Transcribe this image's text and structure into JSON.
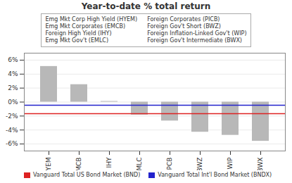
{
  "chart_data": {
    "type": "bar",
    "title": "Year-to-date % total return",
    "categories": [
      "YEM",
      "MCB",
      "IHY",
      "MLC",
      "PCB",
      "BWZ",
      "WIP",
      "BWX"
    ],
    "values": [
      5.1,
      2.5,
      0.1,
      -1.85,
      -2.7,
      -4.3,
      -4.75,
      -5.6
    ],
    "color": "#b8b8b8",
    "reference_lines": [
      {
        "name": "Vanguard Total US Bond Market (BND)",
        "value": -1.65,
        "color": "#dd2222"
      },
      {
        "name": "Vanguard Total Int'l Bond Market (BNDX)",
        "value": -0.45,
        "color": "#2222cc"
      }
    ],
    "ylim": [
      -7,
      7
    ],
    "yticks": [
      {
        "value": -6,
        "label": "-6%"
      },
      {
        "value": -4,
        "label": "-4%"
      },
      {
        "value": -2,
        "label": "-2%"
      },
      {
        "value": 0,
        "label": "0%"
      },
      {
        "value": 2,
        "label": "2%"
      },
      {
        "value": 4,
        "label": "4%"
      },
      {
        "value": 6,
        "label": "6%"
      }
    ],
    "grid": true,
    "legend": "lower left",
    "annotations": [
      "Emg Mkt Corp High Yield (HYEM)",
      "Foreign Corporates (PICB)",
      "Emg Mkt Corporates (EMCB)",
      "Foreign Gov't Short (BWZ)",
      "Foreign High Yield (IHY)",
      "Foreign Inflation-Linked Gov't (WIP)",
      "Emg Mkt Gov't (EMLC)",
      "Foreign Gov't Intermediate (BWX)"
    ]
  }
}
